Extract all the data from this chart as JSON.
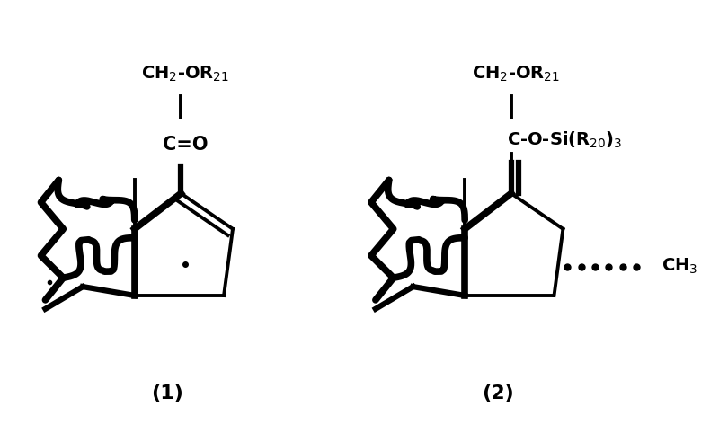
{
  "bg_color": "#ffffff",
  "fig_width": 8.0,
  "fig_height": 4.82,
  "label1": "(1)",
  "label2": "(2)",
  "struct1": {
    "ch2_or21": "CH$_2$-OR$_{21}$",
    "ceo": "C=O"
  },
  "struct2": {
    "ch2_or21": "CH$_2$-OR$_{21}$",
    "c_o_si": "C-O-Si(R$_{20}$)$_3$",
    "ch3": "CH$_3$"
  }
}
